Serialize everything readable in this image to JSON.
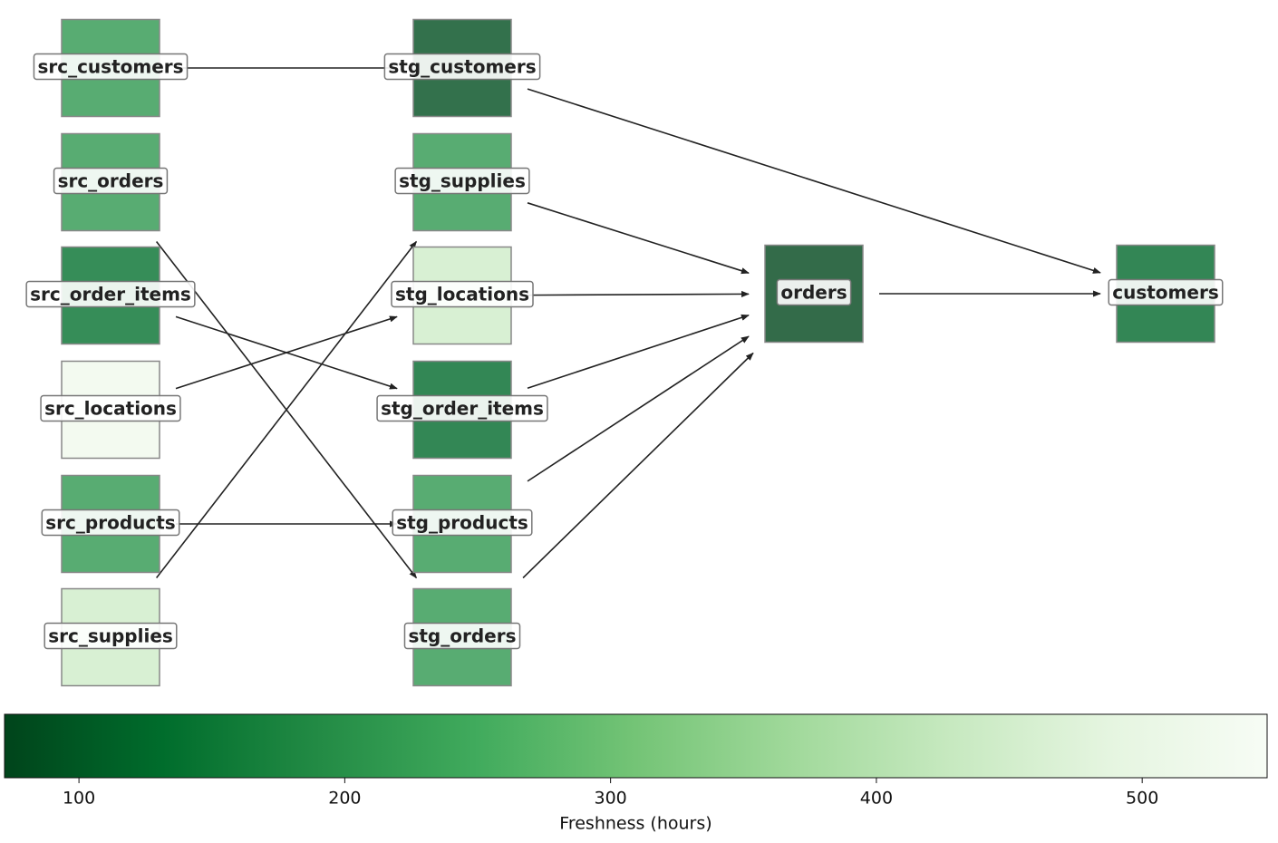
{
  "nodes": [
    {
      "label": "src_customers",
      "freshness": 214
    },
    {
      "label": "src_orders",
      "freshness": 214
    },
    {
      "label": "src_order_items",
      "freshness": 138
    },
    {
      "label": "src_locations",
      "freshness": 523
    },
    {
      "label": "src_products",
      "freshness": 214
    },
    {
      "label": "src_supplies",
      "freshness": 443
    },
    {
      "label": "stg_customers",
      "freshness": 86
    },
    {
      "label": "stg_supplies",
      "freshness": 214
    },
    {
      "label": "stg_locations",
      "freshness": 443
    },
    {
      "label": "stg_order_items",
      "freshness": 125
    },
    {
      "label": "stg_products",
      "freshness": 214
    },
    {
      "label": "stg_orders",
      "freshness": 214
    },
    {
      "label": "orders",
      "freshness": 75
    },
    {
      "label": "customers",
      "freshness": 124
    }
  ],
  "edges": [
    [
      0,
      6
    ],
    [
      1,
      11
    ],
    [
      2,
      9
    ],
    [
      3,
      8
    ],
    [
      4,
      10
    ],
    [
      5,
      7
    ],
    [
      6,
      13
    ],
    [
      7,
      12
    ],
    [
      8,
      12
    ],
    [
      9,
      12
    ],
    [
      10,
      12
    ],
    [
      11,
      12
    ],
    [
      12,
      13
    ]
  ],
  "colorbar": {
    "label": "Freshness (hours)",
    "limits": [
      72,
      547
    ],
    "ticks": [
      100,
      200,
      300,
      400,
      500
    ],
    "colormap": [
      "#00441b",
      "#006d2c",
      "#238b45",
      "#41ab5d",
      "#74c476",
      "#a1d99b",
      "#c7e9c0",
      "#e5f5e0",
      "#f7fcf5"
    ]
  }
}
